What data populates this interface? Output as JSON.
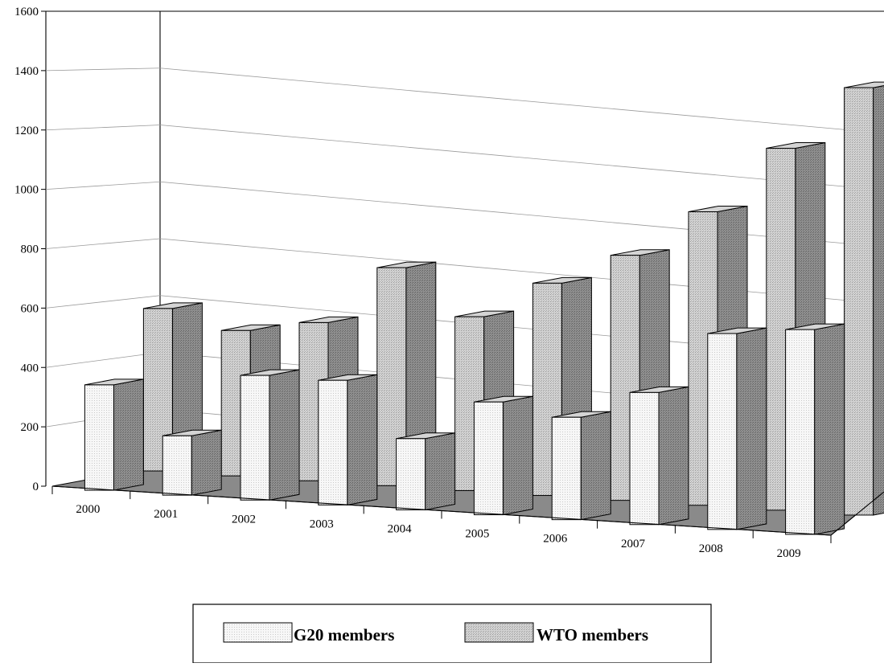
{
  "chart_data": {
    "type": "bar",
    "subtype": "3d-column-depth",
    "categories": [
      "2000",
      "2001",
      "2002",
      "2003",
      "2004",
      "2005",
      "2006",
      "2007",
      "2008",
      "2009"
    ],
    "series": [
      {
        "name": "G20 members",
        "values": [
          355,
          200,
          420,
          420,
          240,
          380,
          345,
          445,
          660,
          690
        ]
      },
      {
        "name": "WTO members",
        "values": [
          570,
          510,
          555,
          765,
          610,
          745,
          860,
          1030,
          1270,
          1500
        ]
      }
    ],
    "ylim": [
      0,
      1600
    ],
    "yticks": [
      0,
      200,
      400,
      600,
      800,
      1000,
      1200,
      1400,
      1600
    ],
    "grid": true,
    "legend_position": "bottom-center",
    "colors": {
      "g20_face": "#f6f6f6",
      "wto_face": "#cfcfcf",
      "floor": "#8a8a8a",
      "side_dark": "#8c8c8c",
      "top_light": "#d9d9d9",
      "gridline": "#aaaaaa"
    }
  }
}
